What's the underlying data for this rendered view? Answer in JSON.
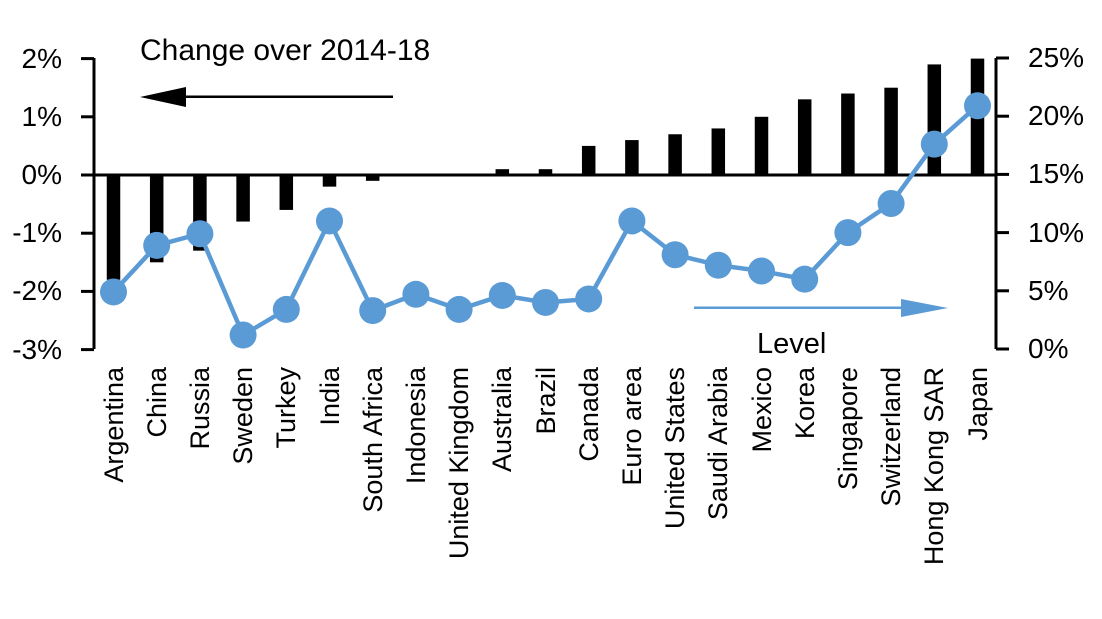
{
  "chart_data": {
    "type": "bar",
    "title": "",
    "categories": [
      "Argentina",
      "China",
      "Russia",
      "Sweden",
      "Turkey",
      "India",
      "South Africa",
      "Indonesia",
      "United Kingdom",
      "Australia",
      "Brazil",
      "Canada",
      "Euro area",
      "United States",
      "Saudi Arabia",
      "Mexico",
      "Korea",
      "Singapore",
      "Switzerland",
      "Hong Kong SAR",
      "Japan"
    ],
    "series": [
      {
        "name": "Change over 2014-18",
        "type": "bar",
        "axis": "left",
        "color": "#000000",
        "values": [
          -1.8,
          -1.5,
          -1.3,
          -0.8,
          -0.6,
          -0.2,
          -0.1,
          0,
          0,
          0.1,
          0.1,
          0.5,
          0.6,
          0.7,
          0.8,
          1.0,
          1.3,
          1.4,
          1.5,
          1.9,
          2.0
        ]
      },
      {
        "name": "Level",
        "type": "line",
        "axis": "right",
        "color": "#5B9BD5",
        "values": [
          4.9,
          8.9,
          9.9,
          1.2,
          3.4,
          11.0,
          3.3,
          4.7,
          3.4,
          4.6,
          4.0,
          4.3,
          11.0,
          8.1,
          7.2,
          6.7,
          6.0,
          10.0,
          12.5,
          17.6,
          20.9
        ]
      }
    ],
    "left_axis": {
      "min": -3,
      "max": 2,
      "tick_values": [
        2,
        1,
        0,
        -1,
        -2,
        -3
      ],
      "tick_labels": [
        "2%",
        "1%",
        "0%",
        "-1%",
        "-2%",
        "-3%"
      ]
    },
    "right_axis": {
      "min": 0,
      "max": 25,
      "tick_values": [
        25,
        20,
        15,
        10,
        5,
        0
      ],
      "tick_labels": [
        "25%",
        "20%",
        "15%",
        "10%",
        "5%",
        "0%"
      ]
    },
    "annotations": {
      "bar_label": "Change over 2014-18",
      "bar_arrow_direction": "left",
      "line_label": "Level",
      "line_arrow_direction": "right"
    },
    "grid": false,
    "legend_position": "in-plot annotations with arrows"
  }
}
